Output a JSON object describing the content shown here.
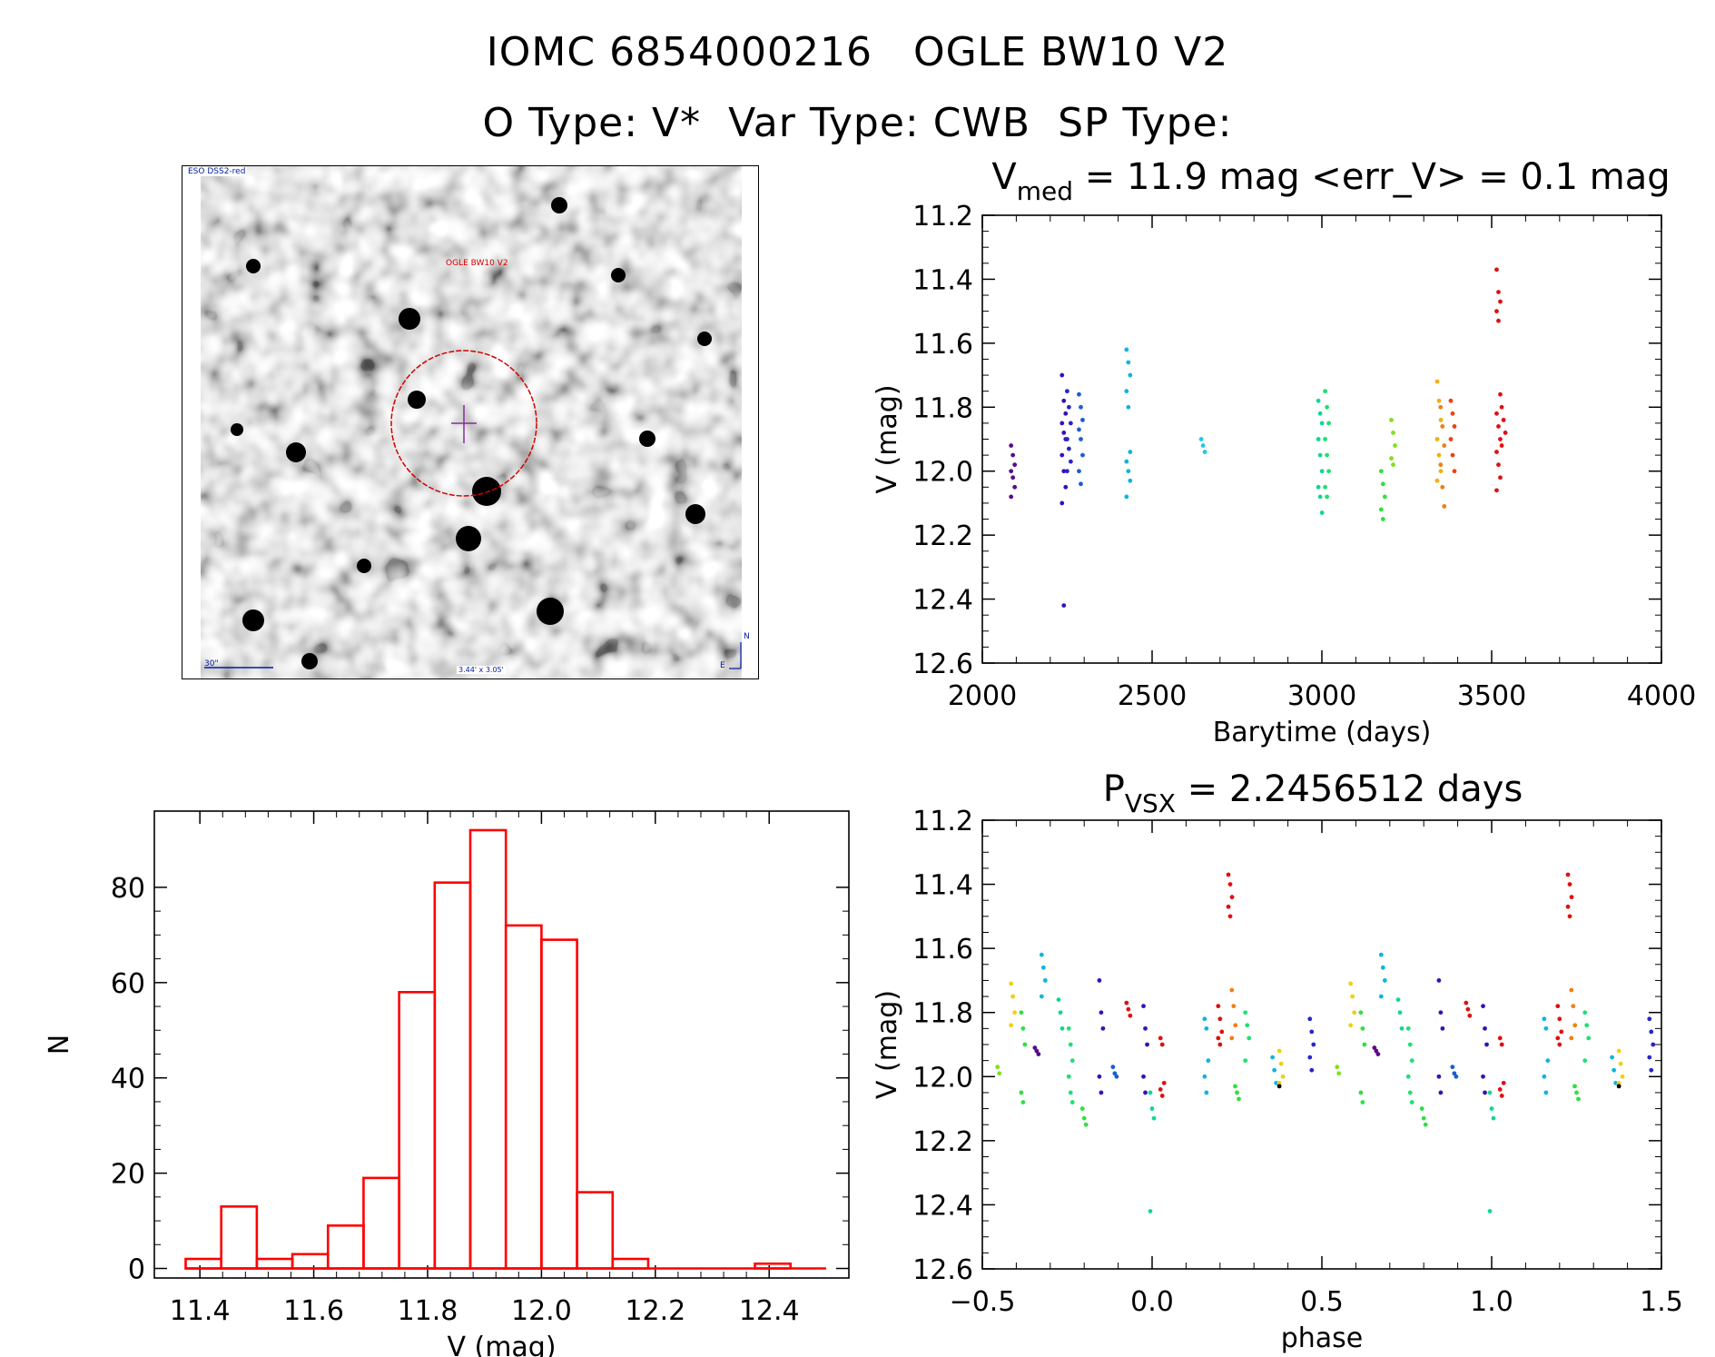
{
  "header": {
    "line1_id": "IOMC 6854000216",
    "line1_name": "OGLE BW10 V2",
    "line2_otype": "O Type: V*",
    "line2_vartype": "Var Type: CWB",
    "line2_sptype": "SP Type:"
  },
  "sky_image": {
    "survey_label": "ESO DSS2-red",
    "target_label": "OGLE BW10 V2",
    "scale_label": "30\"",
    "field_size_label": "3.44' x 3.05'",
    "north_label": "N",
    "east_label": "E"
  },
  "chart_data": [
    {
      "id": "light_curve",
      "type": "scatter",
      "title_parts": {
        "sym": "V",
        "sub": "med",
        "rest": " = 11.9 mag <err_V> = 0.1 mag"
      },
      "xlabel": "Barytime (days)",
      "ylabel": "V (mag)",
      "xlim": [
        2000,
        4000
      ],
      "ylim": [
        12.6,
        11.2
      ],
      "xticks": [
        2000,
        2500,
        3000,
        3500,
        4000
      ],
      "xtick_labels": [
        "2000",
        "2500",
        "3000",
        "3500",
        "4000"
      ],
      "yticks": [
        11.2,
        11.4,
        11.6,
        11.8,
        12.0,
        12.2,
        12.4,
        12.6
      ],
      "ytick_labels": [
        "11.2",
        "11.4",
        "11.6",
        "11.8",
        "12.0",
        "12.2",
        "12.4",
        "12.6"
      ],
      "groups": [
        {
          "t": 2090,
          "color": "#5a0a8a",
          "v": [
            11.92,
            11.95,
            11.98,
            12.0,
            12.02,
            12.05,
            12.08
          ]
        },
        {
          "t": 2240,
          "color": "#3a10b8",
          "v": [
            11.7,
            11.78,
            11.82,
            11.85,
            11.88,
            11.9,
            11.95,
            12.0,
            12.05,
            12.1,
            12.42
          ]
        },
        {
          "t": 2255,
          "color": "#2626c8",
          "v": [
            11.75,
            11.8,
            11.85,
            11.9,
            11.93,
            11.97,
            12.0
          ]
        },
        {
          "t": 2290,
          "color": "#1a5cd8",
          "v": [
            11.76,
            11.8,
            11.84,
            11.87,
            11.9,
            11.95,
            12.0,
            12.04
          ]
        },
        {
          "t": 2430,
          "color": "#10b4e0",
          "v": [
            11.62,
            11.66,
            11.7,
            11.75,
            11.8,
            11.94,
            11.97,
            12.0,
            12.03,
            12.08
          ]
        },
        {
          "t": 2650,
          "color": "#20c8e8",
          "v": [
            11.9,
            11.92,
            11.94
          ]
        },
        {
          "t": 2995,
          "color": "#10d890",
          "v": [
            11.78,
            11.82,
            11.85,
            11.9,
            11.95,
            12.0,
            12.05,
            12.08,
            12.13
          ]
        },
        {
          "t": 3015,
          "color": "#20e070",
          "v": [
            11.75,
            11.8,
            11.85,
            11.9,
            11.95,
            12.0,
            12.05,
            12.08
          ]
        },
        {
          "t": 3180,
          "color": "#30e040",
          "v": [
            12.0,
            12.04,
            12.08,
            12.12,
            12.15
          ]
        },
        {
          "t": 3210,
          "color": "#80e020",
          "v": [
            11.84,
            11.88,
            11.92,
            11.96,
            11.98
          ]
        },
        {
          "t": 3345,
          "color": "#f0b010",
          "v": [
            11.72,
            11.78,
            11.84,
            11.9,
            11.95,
            12.0,
            12.03
          ]
        },
        {
          "t": 3355,
          "color": "#f08010",
          "v": [
            11.8,
            11.86,
            11.92,
            11.98,
            12.05,
            12.11
          ]
        },
        {
          "t": 3385,
          "color": "#f04010",
          "v": [
            11.78,
            11.82,
            11.86,
            11.9,
            11.95,
            12.0
          ]
        },
        {
          "t": 3520,
          "color": "#e01010",
          "v": [
            11.37,
            11.44,
            11.47,
            11.5,
            11.53,
            11.76,
            11.82,
            11.86,
            11.9,
            11.94,
            11.98,
            12.02,
            12.06
          ]
        },
        {
          "t": 3535,
          "color": "#e01010",
          "v": [
            11.8,
            11.84,
            11.88,
            11.92
          ]
        }
      ]
    },
    {
      "id": "histogram",
      "type": "bar",
      "title": "",
      "xlabel": "V (mag)",
      "ylabel": "N",
      "xlim": [
        11.32,
        12.54
      ],
      "ylim": [
        -2,
        96
      ],
      "xticks": [
        11.4,
        11.6,
        11.8,
        12.0,
        12.2,
        12.4
      ],
      "xtick_labels": [
        "11.4",
        "11.6",
        "11.8",
        "12.0",
        "12.2",
        "12.4"
      ],
      "yticks": [
        0,
        20,
        40,
        60,
        80
      ],
      "ytick_labels": [
        "0",
        "20",
        "40",
        "60",
        "80"
      ],
      "bin_edges": [
        11.375,
        11.4375,
        11.5,
        11.5625,
        11.625,
        11.6875,
        11.75,
        11.8125,
        11.875,
        11.9375,
        12.0,
        12.0625,
        12.125,
        12.1875,
        12.25,
        12.3125,
        12.375,
        12.4375,
        12.5
      ],
      "counts": [
        2,
        13,
        2,
        3,
        9,
        19,
        58,
        81,
        92,
        72,
        69,
        16,
        2,
        0,
        0,
        0,
        1,
        0
      ],
      "bar_color": "#ff0000"
    },
    {
      "id": "phased",
      "type": "scatter",
      "title_parts": {
        "sym": "P",
        "sub": "VSX",
        "rest": " = 2.2456512 days"
      },
      "xlabel": "phase",
      "ylabel": "V (mag)",
      "xlim": [
        -0.5,
        1.5
      ],
      "ylim": [
        12.6,
        11.2
      ],
      "xticks": [
        -0.5,
        0.0,
        0.5,
        1.0,
        1.5
      ],
      "xtick_labels": [
        "−0.5",
        "0.0",
        "0.5",
        "1.0",
        "1.5"
      ],
      "yticks": [
        11.2,
        11.4,
        11.6,
        11.8,
        12.0,
        12.2,
        12.4,
        12.6
      ],
      "ytick_labels": [
        "11.2",
        "11.4",
        "11.6",
        "11.8",
        "12.0",
        "12.2",
        "12.4",
        "12.6"
      ],
      "groups": [
        {
          "p": -0.45,
          "color": "#80e020",
          "v": [
            11.97,
            11.99
          ]
        },
        {
          "p": -0.41,
          "color": "#f0d010",
          "v": [
            11.71,
            11.75,
            11.8,
            11.84
          ]
        },
        {
          "p": -0.38,
          "color": "#30e040",
          "v": [
            11.8,
            11.85,
            11.9,
            12.05,
            12.08
          ]
        },
        {
          "p": -0.34,
          "color": "#5a0a8a",
          "v": [
            11.91,
            11.92,
            11.93
          ]
        },
        {
          "p": -0.32,
          "color": "#10b4e0",
          "v": [
            11.62,
            11.66,
            11.7,
            11.75
          ]
        },
        {
          "p": -0.27,
          "color": "#10d890",
          "v": [
            11.76,
            11.8,
            11.85
          ]
        },
        {
          "p": -0.24,
          "color": "#20e070",
          "v": [
            11.85,
            11.9,
            11.95,
            12.0,
            12.05,
            12.08
          ]
        },
        {
          "p": -0.2,
          "color": "#30e040",
          "v": [
            12.1,
            12.13,
            12.15
          ]
        },
        {
          "p": -0.15,
          "color": "#3a10b8",
          "v": [
            11.7,
            11.8,
            11.85,
            12.0,
            12.05
          ]
        },
        {
          "p": -0.11,
          "color": "#1a5cd8",
          "v": [
            11.97,
            11.99,
            12.0
          ]
        },
        {
          "p": -0.07,
          "color": "#e01010",
          "v": [
            11.77,
            11.79,
            11.81
          ]
        },
        {
          "p": -0.02,
          "color": "#3a10b8",
          "v": [
            11.78,
            11.85,
            11.9,
            12.0,
            12.05
          ]
        },
        {
          "p": 0.0,
          "color": "#10d890",
          "v": [
            12.05,
            12.1,
            12.13,
            12.42
          ]
        },
        {
          "p": 0.03,
          "color": "#e01010",
          "v": [
            11.88,
            11.9,
            12.02,
            12.04,
            12.06
          ]
        },
        {
          "p": 0.16,
          "color": "#10b4e0",
          "v": [
            11.82,
            11.85,
            11.95,
            12.0,
            12.05
          ]
        },
        {
          "p": 0.2,
          "color": "#e01010",
          "v": [
            11.78,
            11.82,
            11.86,
            11.88,
            11.9
          ]
        },
        {
          "p": 0.23,
          "color": "#e01010",
          "v": [
            11.37,
            11.4,
            11.44,
            11.47,
            11.5
          ]
        },
        {
          "p": 0.24,
          "color": "#f08010",
          "v": [
            11.73,
            11.78,
            11.84,
            11.88
          ]
        },
        {
          "p": 0.25,
          "color": "#30e040",
          "v": [
            12.03,
            12.05,
            12.07
          ]
        },
        {
          "p": 0.28,
          "color": "#20e070",
          "v": [
            11.8,
            11.84,
            11.88,
            11.95
          ]
        },
        {
          "p": 0.36,
          "color": "#10b4e0",
          "v": [
            11.94,
            11.98,
            12.02
          ]
        },
        {
          "p": 0.38,
          "color": "#f0d010",
          "v": [
            11.92,
            11.96,
            12.0,
            12.02
          ]
        },
        {
          "p": 0.38,
          "color": "#000000",
          "v": [
            12.03
          ]
        },
        {
          "p": 0.47,
          "color": "#2626c8",
          "v": [
            11.82,
            11.86,
            11.9,
            11.94,
            11.98
          ]
        }
      ]
    }
  ],
  "colors": {
    "histogram": "#ff0000",
    "axes": "#000000",
    "circle": "#d40000"
  }
}
